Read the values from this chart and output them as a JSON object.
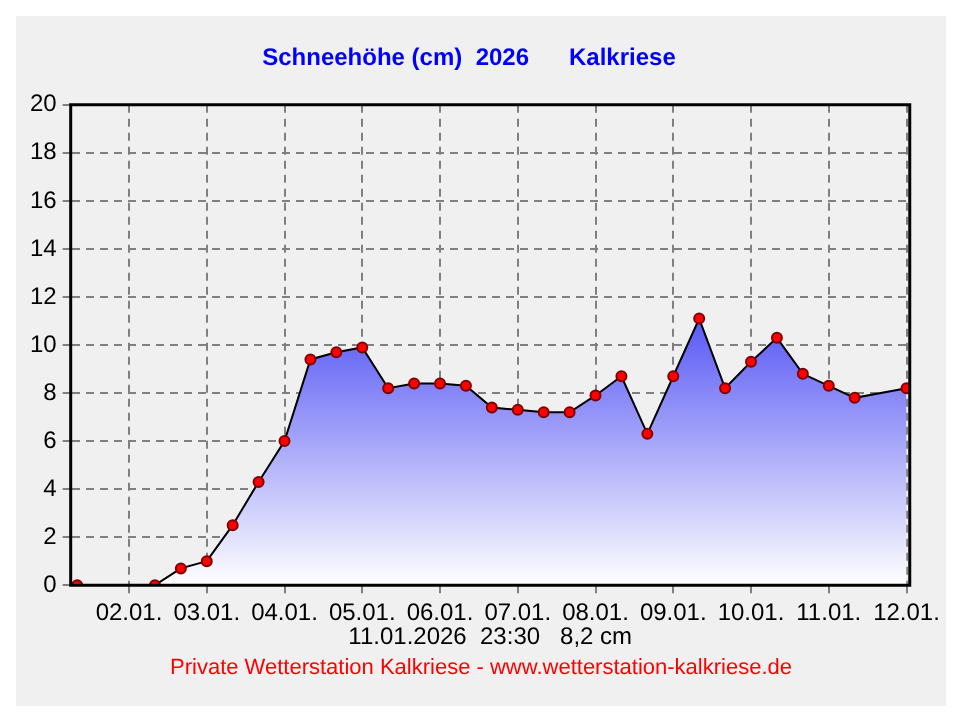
{
  "chart_data": {
    "type": "area",
    "title": "Schneehöhe (cm)  2026      Kalkriese",
    "x": [
      "2026-01-01T08:00",
      "2026-01-02T08:00",
      "2026-01-02T16:00",
      "2026-01-03T00:00",
      "2026-01-03T08:00",
      "2026-01-03T16:00",
      "2026-01-04T00:00",
      "2026-01-04T08:00",
      "2026-01-04T16:00",
      "2026-01-05T00:00",
      "2026-01-05T08:00",
      "2026-01-05T16:00",
      "2026-01-06T00:00",
      "2026-01-06T08:00",
      "2026-01-06T16:00",
      "2026-01-07T00:00",
      "2026-01-07T08:00",
      "2026-01-07T16:00",
      "2026-01-08T00:00",
      "2026-01-08T08:00",
      "2026-01-08T16:00",
      "2026-01-09T00:00",
      "2026-01-09T08:00",
      "2026-01-09T16:00",
      "2026-01-10T00:00",
      "2026-01-10T08:00",
      "2026-01-10T16:00",
      "2026-01-11T00:00",
      "2026-01-11T08:00",
      "2026-01-12T00:00"
    ],
    "series": [
      {
        "color": "#5a5af5",
        "values": [
          0,
          0,
          0.7,
          1.0,
          2.5,
          4.3,
          6.0,
          9.4,
          9.7,
          9.9,
          8.2,
          8.4,
          8.4,
          8.3,
          7.4,
          7.3,
          7.2,
          7.2,
          7.9,
          8.7,
          6.3,
          8.7,
          11.1,
          8.2,
          9.3,
          10.3,
          8.8,
          8.3,
          7.8,
          8.2
        ]
      }
    ],
    "xlim": [
      "2026-01-01T06:00",
      "2026-01-12T01:00"
    ],
    "xticks": [
      {
        "value": "2026-01-02",
        "label": "02.01."
      },
      {
        "value": "2026-01-03",
        "label": "03.01."
      },
      {
        "value": "2026-01-04",
        "label": "04.01."
      },
      {
        "value": "2026-01-05",
        "label": "05.01."
      },
      {
        "value": "2026-01-06",
        "label": "06.01."
      },
      {
        "value": "2026-01-07",
        "label": "07.01."
      },
      {
        "value": "2026-01-08",
        "label": "08.01."
      },
      {
        "value": "2026-01-09",
        "label": "09.01."
      },
      {
        "value": "2026-01-10",
        "label": "10.01."
      },
      {
        "value": "2026-01-11",
        "label": "11.01."
      },
      {
        "value": "2026-01-12",
        "label": "12.01."
      }
    ],
    "ylim": [
      0,
      20
    ],
    "yticks": [
      0,
      2,
      4,
      6,
      8,
      10,
      12,
      14,
      16,
      18,
      20
    ],
    "grid": true,
    "marker": "circle",
    "legend": false,
    "annotations": [
      "11.01.2026  23:30   8,2 cm",
      "Private Wetterstation Kalkriese - www.wetterstation-kalkriese.de"
    ]
  }
}
